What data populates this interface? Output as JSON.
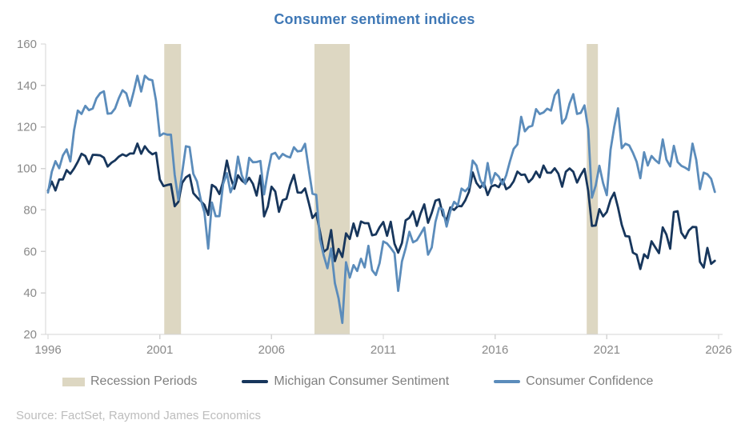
{
  "title": "Consumer sentiment indices",
  "source": "Source: FactSet, Raymond James Economics",
  "legend": [
    {
      "label": "Recession Periods",
      "color": "#ddd7c2"
    },
    {
      "label": "Michigan Consumer Sentiment",
      "color": "#17365c"
    },
    {
      "label": "Consumer Confidence",
      "color": "#5b8cbb"
    }
  ],
  "colors": {
    "title": "#3f78b6",
    "axis_line": "#d4d4d4",
    "tick_label": "#898989",
    "legend_text": "#7f7f7f",
    "source_text": "#bdbdbd",
    "recession_band": "#ddd7c2",
    "michigan": "#17365c",
    "confidence": "#5b8cbb"
  },
  "chart_data": {
    "type": "line",
    "title": "Consumer sentiment indices",
    "xlabel": "",
    "ylabel": "",
    "xlim": [
      1996,
      2026.2
    ],
    "ylim": [
      20,
      160
    ],
    "xticks": [
      1996,
      2001,
      2006,
      2011,
      2016,
      2021,
      2026
    ],
    "yticks": [
      20,
      40,
      60,
      80,
      100,
      120,
      140,
      160
    ],
    "grid": false,
    "legend_position": "bottom",
    "band_color": "#ddd7c2",
    "recession_periods": [
      [
        2001.2,
        2001.95
      ],
      [
        2007.92,
        2009.5
      ],
      [
        2020.1,
        2020.6
      ]
    ],
    "x_start": 1996.0,
    "x_step_years": 0.1666667,
    "series": [
      {
        "name": "Michigan Consumer Sentiment",
        "color": "#17365c",
        "values": [
          89.3,
          93.7,
          89.4,
          94.7,
          94.7,
          99.2,
          97.4,
          100.0,
          103.2,
          107.1,
          106.0,
          102.1,
          106.6,
          106.5,
          106.3,
          105.2,
          100.9,
          102.7,
          103.9,
          105.7,
          106.8,
          106.0,
          107.2,
          107.2,
          112.0,
          107.1,
          110.7,
          108.3,
          106.8,
          107.6,
          94.7,
          91.5,
          92.0,
          92.4,
          81.8,
          83.9,
          93.0,
          95.7,
          96.9,
          88.1,
          86.1,
          84.2,
          82.4,
          77.6,
          92.1,
          90.9,
          87.7,
          93.7,
          103.8,
          95.8,
          90.2,
          96.7,
          94.2,
          92.8,
          95.5,
          92.6,
          86.9,
          96.5,
          76.9,
          81.6,
          91.2,
          88.9,
          79.1,
          84.7,
          85.4,
          92.1,
          96.9,
          88.4,
          88.3,
          90.4,
          83.4,
          76.1,
          78.4,
          69.5,
          59.8,
          61.2,
          70.3,
          55.3,
          61.2,
          57.3,
          68.7,
          66.0,
          73.5,
          67.4,
          74.4,
          73.6,
          73.6,
          67.8,
          68.2,
          71.6,
          74.2,
          67.5,
          74.3,
          63.7,
          59.4,
          64.1,
          75.0,
          76.2,
          79.3,
          72.3,
          78.3,
          82.7,
          73.8,
          78.6,
          84.5,
          85.1,
          77.5,
          75.1,
          81.2,
          80.0,
          81.9,
          81.8,
          84.6,
          88.8,
          98.1,
          93.0,
          90.7,
          93.1,
          87.2,
          91.3,
          92.0,
          91.0,
          94.7,
          90.0,
          91.2,
          93.8,
          98.5,
          96.9,
          97.1,
          93.4,
          95.1,
          98.5,
          95.7,
          101.4,
          98.0,
          97.9,
          100.1,
          97.5,
          91.2,
          98.4,
          100.0,
          98.4,
          93.2,
          96.8,
          99.8,
          89.1,
          72.3,
          72.5,
          80.4,
          76.9,
          79.0,
          85.0,
          88.3,
          81.2,
          72.8,
          67.4,
          67.2,
          59.4,
          58.4,
          51.5,
          58.6,
          56.8,
          64.9,
          62.0,
          59.2,
          71.6,
          68.1,
          61.3,
          79.0,
          79.4,
          69.1,
          66.4,
          70.1,
          71.8,
          71.7,
          55.0,
          52.2,
          61.7,
          54.0,
          55.5
        ]
      },
      {
        "name": "Consumer Confidence",
        "color": "#5b8cbb",
        "values": [
          88.4,
          98.4,
          103.5,
          100.1,
          106.3,
          109.2,
          103.4,
          118.5,
          127.9,
          126.3,
          130.2,
          128.1,
          128.9,
          133.8,
          136.3,
          137.2,
          126.4,
          126.6,
          128.9,
          133.9,
          137.7,
          136.2,
          130.1,
          137.0,
          144.7,
          137.1,
          144.7,
          143.0,
          142.5,
          132.6,
          115.7,
          116.9,
          116.3,
          116.3,
          97.0,
          84.9,
          97.8,
          110.7,
          110.3,
          97.4,
          93.7,
          84.9,
          78.8,
          61.4,
          83.6,
          77.0,
          77.0,
          92.5,
          97.7,
          88.5,
          93.1,
          105.7,
          96.7,
          92.6,
          105.1,
          103.0,
          103.1,
          103.6,
          87.5,
          98.3,
          106.8,
          107.5,
          104.7,
          107.0,
          105.9,
          105.3,
          110.2,
          108.2,
          108.5,
          111.9,
          99.5,
          87.8,
          87.3,
          65.9,
          58.1,
          51.9,
          61.4,
          44.7,
          37.4,
          25.5,
          54.8,
          47.4,
          53.4,
          50.6,
          56.5,
          52.3,
          62.7,
          51.0,
          48.6,
          54.3,
          64.8,
          63.8,
          61.7,
          59.2,
          41.0,
          55.2,
          61.5,
          69.5,
          64.4,
          65.4,
          68.4,
          71.5,
          58.4,
          61.9,
          74.3,
          81.0,
          80.2,
          72.0,
          79.4,
          83.9,
          82.2,
          90.3,
          89.0,
          91.0,
          103.8,
          101.4,
          94.6,
          91.0,
          102.6,
          92.6,
          97.8,
          96.1,
          92.4,
          96.7,
          103.5,
          109.4,
          111.6,
          124.9,
          117.9,
          120.0,
          120.6,
          128.6,
          126.2,
          127.0,
          128.8,
          127.9,
          135.3,
          137.9,
          121.7,
          124.2,
          131.3,
          135.8,
          126.3,
          126.8,
          130.4,
          118.8,
          85.9,
          91.7,
          101.3,
          92.9,
          87.1,
          109.0,
          120.0,
          129.0,
          109.8,
          111.9,
          111.1,
          107.6,
          103.2,
          95.3,
          107.8,
          101.4,
          106.0,
          104.0,
          102.5,
          114.0,
          104.3,
          101.0,
          110.9,
          103.1,
          101.3,
          100.4,
          99.2,
          112.0,
          104.1,
          90.0,
          98.0,
          97.2,
          95.0,
          88.7
        ]
      }
    ]
  }
}
